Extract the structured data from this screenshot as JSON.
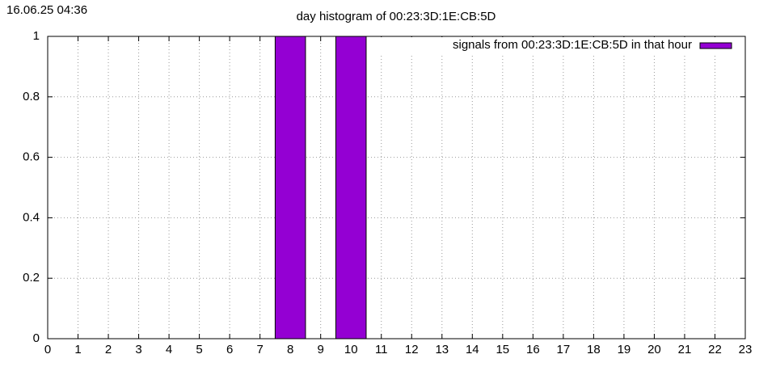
{
  "chart_data": {
    "type": "bar",
    "timestamp": "16.06.25 04:36",
    "title": "day histogram of 00:23:3D:1E:CB:5D",
    "x": [
      0,
      1,
      2,
      3,
      4,
      5,
      6,
      7,
      8,
      9,
      10,
      11,
      12,
      13,
      14,
      15,
      16,
      17,
      18,
      19,
      20,
      21,
      22,
      23
    ],
    "series": [
      {
        "name": "signals from 00:23:3D:1E:CB:5D in that hour",
        "color": "#9400d3",
        "values": [
          0,
          0,
          0,
          0,
          0,
          0,
          0,
          0,
          1,
          0,
          1,
          0,
          0,
          0,
          0,
          0,
          0,
          0,
          0,
          0,
          0,
          0,
          0,
          0
        ]
      }
    ],
    "xlim": [
      0,
      23
    ],
    "xticks": [
      0,
      1,
      2,
      3,
      4,
      5,
      6,
      7,
      8,
      9,
      10,
      11,
      12,
      13,
      14,
      15,
      16,
      17,
      18,
      19,
      20,
      21,
      22,
      23
    ],
    "ylim": [
      0,
      1
    ],
    "yticks": [
      0,
      0.2,
      0.4,
      0.6,
      0.8,
      1
    ],
    "grid": true,
    "legend": "top-right"
  }
}
